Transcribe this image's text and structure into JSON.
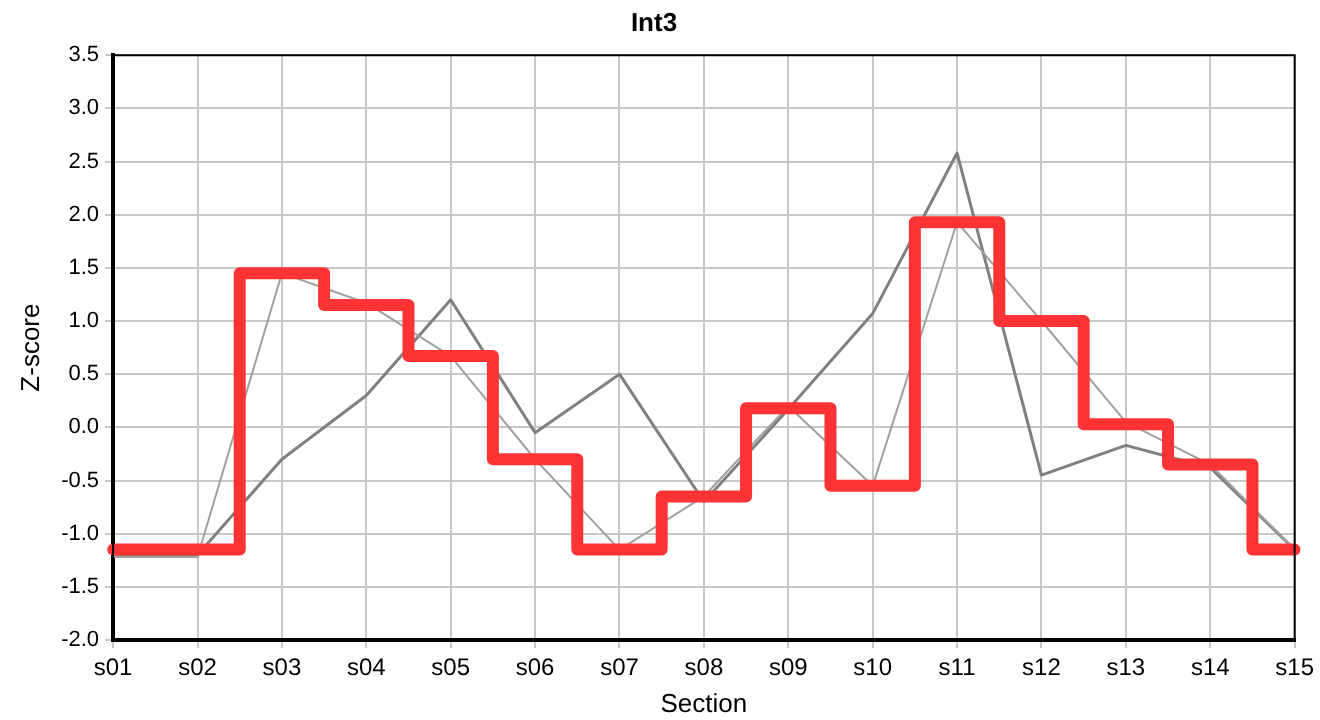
{
  "chart_data": {
    "type": "line",
    "title": "Int3",
    "xlabel": "Section",
    "ylabel": "Z-score",
    "categories": [
      "s01",
      "s02",
      "s03",
      "s04",
      "s05",
      "s06",
      "s07",
      "s08",
      "s09",
      "s10",
      "s11",
      "s12",
      "s13",
      "s14",
      "s15"
    ],
    "series": [
      {
        "type": "line",
        "color": "#808080",
        "values": [
          -1.2,
          -1.2,
          -0.3,
          0.3,
          1.2,
          -0.05,
          0.5,
          -0.7,
          0.17,
          1.07,
          2.58,
          -0.45,
          -0.17,
          -0.38,
          -1.15
        ]
      },
      {
        "type": "line",
        "color": "#a0a0a0",
        "values": [
          -1.22,
          -1.22,
          1.45,
          1.17,
          0.67,
          -0.3,
          -1.15,
          -0.65,
          0.2,
          -0.55,
          1.93,
          1.0,
          0.05,
          -0.35,
          -1.15
        ]
      },
      {
        "type": "step",
        "color": "#ff3333",
        "values": [
          -1.15,
          -1.15,
          1.45,
          1.15,
          0.67,
          -0.3,
          -1.15,
          -0.65,
          0.18,
          -0.55,
          1.93,
          1.0,
          0.03,
          -0.35,
          -1.15
        ]
      }
    ],
    "ylim": [
      -2.0,
      3.5
    ],
    "yticks": [
      {
        "value": -2,
        "label": "-2.0"
      },
      {
        "value": -1.5,
        "label": "-1.5"
      },
      {
        "value": -1,
        "label": "-1.0"
      },
      {
        "value": -0.5,
        "label": "-0.5"
      },
      {
        "value": 0,
        "label": "0.0"
      },
      {
        "value": 0.5,
        "label": "0.5"
      },
      {
        "value": 1,
        "label": "1.0"
      },
      {
        "value": 1.5,
        "label": "1.5"
      },
      {
        "value": 2,
        "label": "2.0"
      },
      {
        "value": 2.5,
        "label": "2.5"
      },
      {
        "value": 3,
        "label": "3.0"
      },
      {
        "value": 3.5,
        "label": "3.5"
      }
    ],
    "grid": true,
    "legend": false,
    "marker": "none"
  }
}
